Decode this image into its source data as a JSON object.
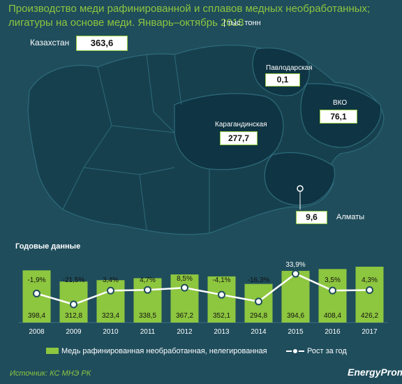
{
  "title_line1": "Производство меди рафинированной и сплавов медных необработанных;",
  "title_line2": "лигатуры на основе меди. Январь–октябрь 2018",
  "unit": "| тыс. тонн",
  "kazakhstan": {
    "label": "Казахстан",
    "value": "363,6"
  },
  "regions": [
    {
      "name": "Павлодарская",
      "value": "0,1"
    },
    {
      "name": "ВКО",
      "value": "76,1"
    },
    {
      "name": "Карагандинская",
      "value": "277,7"
    },
    {
      "name": "Алматы",
      "value": "9,6"
    }
  ],
  "section_title": "Годовые данные",
  "chart_data": {
    "type": "bar",
    "categories": [
      "2008",
      "2009",
      "2010",
      "2011",
      "2012",
      "2013",
      "2014",
      "2015",
      "2016",
      "2017"
    ],
    "series": [
      {
        "name": "Медь рафинированная необработанная, нелегированная",
        "values": [
          398.4,
          312.8,
          323.4,
          338.5,
          367.2,
          352.1,
          294.8,
          394.6,
          408.4,
          426.2
        ]
      },
      {
        "name": "Рост за год",
        "type": "line",
        "values": [
          -1.9,
          -21.5,
          3.4,
          4.7,
          8.5,
          -4.1,
          -16.3,
          33.9,
          3.5,
          4.3
        ]
      }
    ],
    "bar_labels": [
      "398,4",
      "312,8",
      "323,4",
      "338,5",
      "367,2",
      "352,1",
      "294,8",
      "394,6",
      "408,4",
      "426,2"
    ],
    "growth_labels": [
      "-1,9%",
      "-21,5%",
      "3,4%",
      "4,7%",
      "8,5%",
      "-4,1%",
      "-16,3%",
      "33,9%",
      "3,5%",
      "4,3%"
    ]
  },
  "source": "Источник: КС МНЭ РК",
  "brand": "EnergyProm",
  "colors": {
    "background": "#1f4d5c",
    "bar": "#8dc63f",
    "line": "#ffffff",
    "accent": "#8dc63f"
  }
}
